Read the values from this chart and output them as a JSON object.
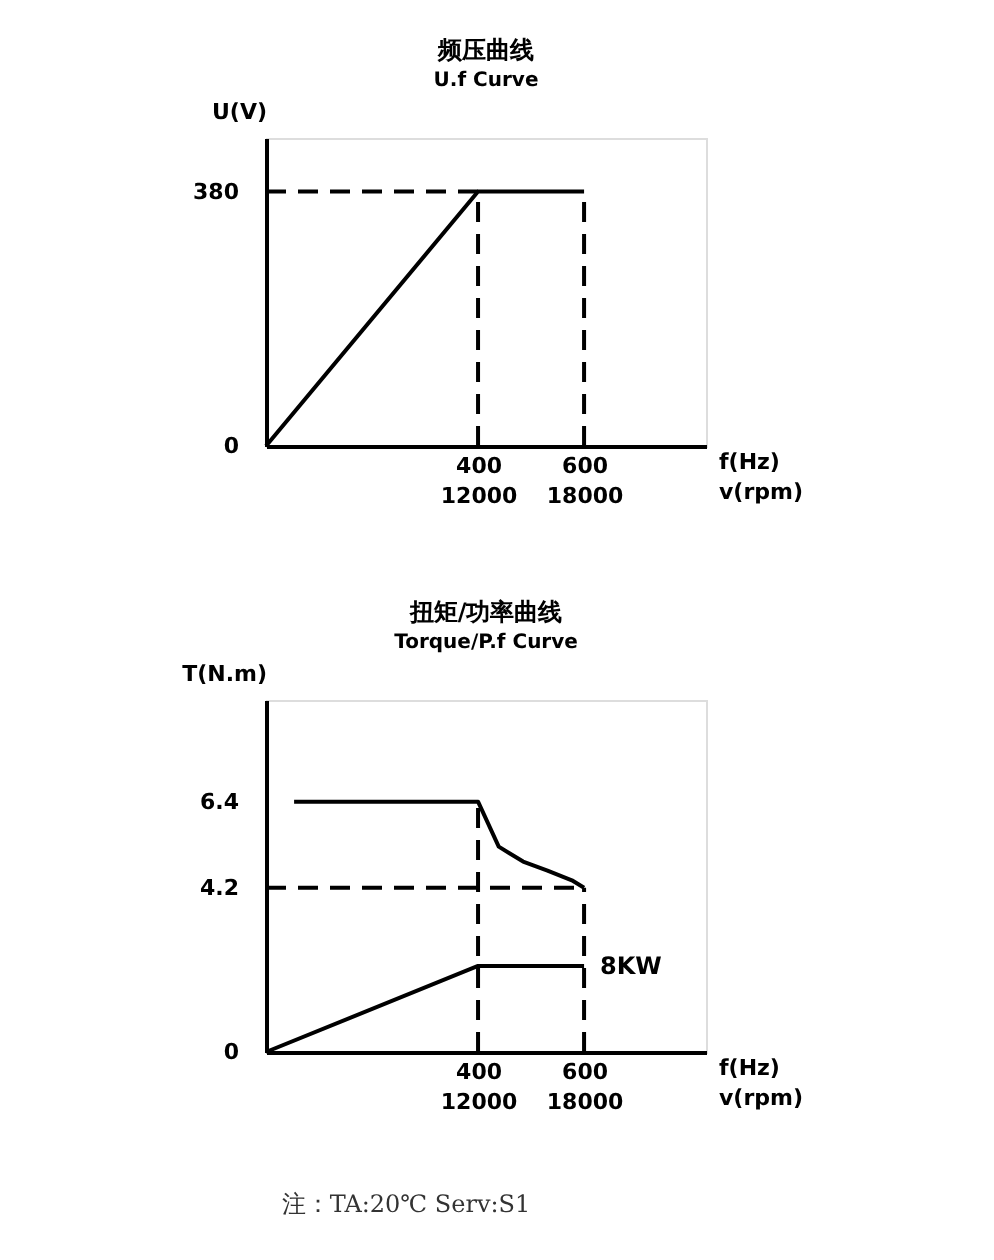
{
  "chart_data": [
    {
      "type": "line",
      "title": "频压曲线",
      "subtitle": "U.f Curve",
      "xlabel": "f(Hz)",
      "x2label": "v(rpm)",
      "ylabel": "U(V)",
      "xlim": [
        0,
        830
      ],
      "ylim": [
        0,
        460
      ],
      "xticks": [
        400,
        600
      ],
      "x2lim": [
        0,
        24900
      ],
      "x2ticks": [
        12000,
        18000
      ],
      "yticks": [
        0,
        380
      ],
      "marker": "none",
      "series": [
        {
          "color": "#000000",
          "line_style": "solid",
          "x": [
            0,
            400,
            600
          ],
          "values": [
            0,
            380,
            380
          ]
        },
        {
          "color": "#000000",
          "line_style": "dashed",
          "x": [
            0,
            400
          ],
          "values": [
            380,
            380
          ]
        },
        {
          "color": "#000000",
          "line_style": "dashed",
          "x": [
            400,
            400
          ],
          "values": [
            0,
            380
          ]
        },
        {
          "color": "#000000",
          "line_style": "dashed",
          "x": [
            600,
            600
          ],
          "values": [
            0,
            380
          ]
        }
      ]
    },
    {
      "type": "line",
      "title": "扭矩/功率曲线",
      "subtitle": "Torque/P.f Curve",
      "xlabel": "f(Hz)",
      "x2label": "v(rpm)",
      "ylabel": "T(N.m)",
      "xlim": [
        0,
        830
      ],
      "ylim": [
        0,
        9
      ],
      "xticks": [
        400,
        600
      ],
      "x2lim": [
        0,
        24900
      ],
      "x2ticks": [
        12000,
        18000
      ],
      "yticks": [
        0,
        4.2,
        6.4
      ],
      "marker": "none",
      "series": [
        {
          "color": "#000000",
          "line_style": "solid",
          "x": [
            53,
            400,
            439,
            485,
            531,
            577,
            600
          ],
          "values": [
            6.4,
            6.4,
            5.25,
            4.87,
            4.64,
            4.39,
            4.2
          ]
        },
        {
          "color": "#000000",
          "line_style": "solid",
          "x": [
            0,
            400,
            600
          ],
          "values": [
            0,
            2.2,
            2.2
          ]
        },
        {
          "color": "#000000",
          "line_style": "dashed",
          "x": [
            0,
            600
          ],
          "values": [
            4.2,
            4.2
          ]
        },
        {
          "color": "#000000",
          "line_style": "dashed",
          "x": [
            400,
            400
          ],
          "values": [
            0,
            6.4
          ]
        },
        {
          "color": "#000000",
          "line_style": "dashed",
          "x": [
            600,
            600
          ],
          "values": [
            0,
            4.2
          ]
        }
      ],
      "annotations": [
        {
          "text": "8KW",
          "x": 600,
          "y": 2.2
        },
        "注：TA:20℃      Serv:S1"
      ]
    }
  ]
}
